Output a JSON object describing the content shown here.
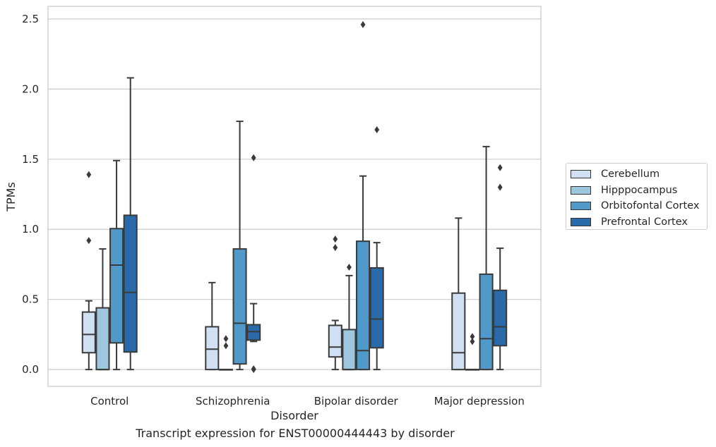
{
  "caption": "Transcript expression for ENST00000444443 by disorder",
  "chart_data": {
    "type": "box",
    "xlabel": "Disorder",
    "ylabel": "TPMs",
    "ylim": [
      -0.12,
      2.59
    ],
    "yticks": [
      "0.0",
      "0.5",
      "1.0",
      "1.5",
      "2.0",
      "2.5"
    ],
    "grid": true,
    "legend_position": "right",
    "categories": [
      "Control",
      "Schizophrenia",
      "Bipolar disorder",
      "Major depression"
    ],
    "series": [
      {
        "name": "Cerebellum",
        "color": "#d0e0f2",
        "boxes": [
          {
            "whisker_low": 0.0,
            "q1": 0.12,
            "median": 0.25,
            "q3": 0.41,
            "whisker_high": 0.49,
            "outliers": [
              0.92,
              1.39
            ]
          },
          {
            "whisker_low": 0.0,
            "q1": 0.0,
            "median": 0.145,
            "q3": 0.305,
            "whisker_high": 0.62,
            "outliers": []
          },
          {
            "whisker_low": 0.0,
            "q1": 0.09,
            "median": 0.16,
            "q3": 0.315,
            "whisker_high": 0.35,
            "outliers": [
              0.87,
              0.93
            ]
          },
          {
            "whisker_low": 0.0,
            "q1": 0.0,
            "median": 0.12,
            "q3": 0.545,
            "whisker_high": 1.08,
            "outliers": []
          }
        ]
      },
      {
        "name": "Hipppocampus",
        "color": "#9fc6df",
        "boxes": [
          {
            "whisker_low": 0.0,
            "q1": 0.0,
            "median": 0.0,
            "q3": 0.44,
            "whisker_high": 0.86,
            "outliers": []
          },
          {
            "whisker_low": 0.0,
            "q1": 0.0,
            "median": 0.0,
            "q3": 0.0,
            "whisker_high": 0.0,
            "outliers": [
              0.17,
              0.22
            ]
          },
          {
            "whisker_low": 0.0,
            "q1": 0.0,
            "median": 0.0,
            "q3": 0.285,
            "whisker_high": 0.67,
            "outliers": [
              0.73
            ]
          },
          {
            "whisker_low": 0.0,
            "q1": 0.0,
            "median": 0.0,
            "q3": 0.0,
            "whisker_high": 0.0,
            "outliers": [
              0.2,
              0.235
            ]
          }
        ]
      },
      {
        "name": "Orbitofontal Cortex",
        "color": "#5199c8",
        "boxes": [
          {
            "whisker_low": 0.0,
            "q1": 0.19,
            "median": 0.745,
            "q3": 1.005,
            "whisker_high": 1.49,
            "outliers": []
          },
          {
            "whisker_low": 0.0,
            "q1": 0.04,
            "median": 0.33,
            "q3": 0.86,
            "whisker_high": 1.77,
            "outliers": []
          },
          {
            "whisker_low": 0.0,
            "q1": 0.0,
            "median": 0.135,
            "q3": 0.915,
            "whisker_high": 1.38,
            "outliers": [
              2.46
            ]
          },
          {
            "whisker_low": 0.0,
            "q1": 0.0,
            "median": 0.22,
            "q3": 0.68,
            "whisker_high": 1.59,
            "outliers": []
          }
        ]
      },
      {
        "name": "Prefrontal Cortex",
        "color": "#2b6aa8",
        "boxes": [
          {
            "whisker_low": 0.0,
            "q1": 0.125,
            "median": 0.55,
            "q3": 1.1,
            "whisker_high": 2.08,
            "outliers": []
          },
          {
            "whisker_low": 0.2,
            "q1": 0.21,
            "median": 0.27,
            "q3": 0.32,
            "whisker_high": 0.47,
            "outliers": [
              0.0,
              0.005,
              1.51
            ]
          },
          {
            "whisker_low": 0.0,
            "q1": 0.155,
            "median": 0.36,
            "q3": 0.725,
            "whisker_high": 0.905,
            "outliers": [
              1.71
            ]
          },
          {
            "whisker_low": 0.0,
            "q1": 0.17,
            "median": 0.305,
            "q3": 0.565,
            "whisker_high": 0.865,
            "outliers": [
              1.3,
              1.44
            ]
          }
        ]
      }
    ]
  }
}
